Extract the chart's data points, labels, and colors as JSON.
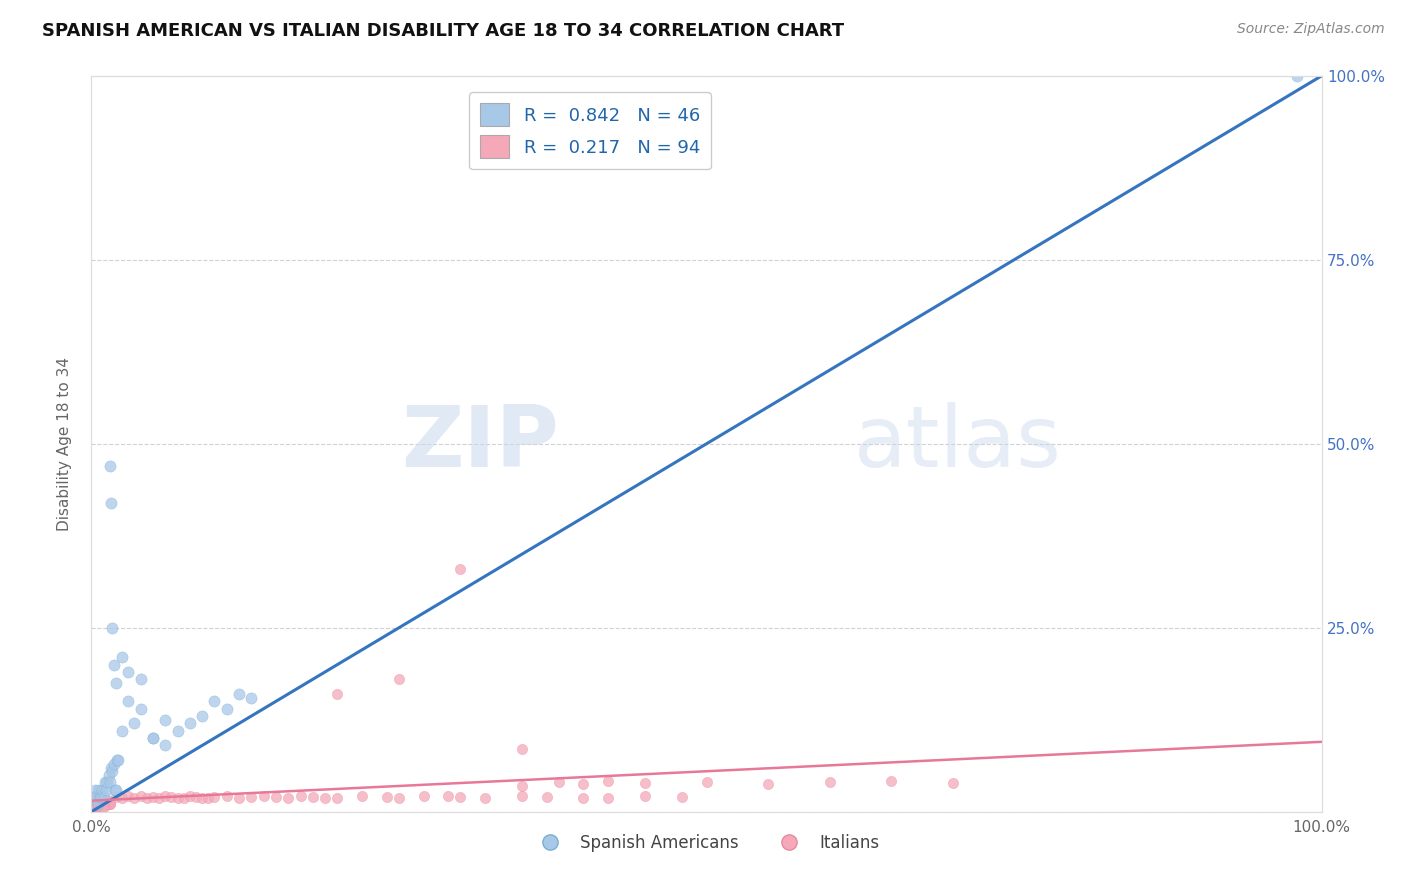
{
  "title": "SPANISH AMERICAN VS ITALIAN DISABILITY AGE 18 TO 34 CORRELATION CHART",
  "source": "Source: ZipAtlas.com",
  "ylabel": "Disability Age 18 to 34",
  "xlabel": "",
  "xlim": [
    0,
    1
  ],
  "ylim": [
    0,
    1
  ],
  "blue_R": 0.842,
  "blue_N": 46,
  "pink_R": 0.217,
  "pink_N": 94,
  "blue_color": "#a8c8e8",
  "blue_edge_color": "#7aaed0",
  "pink_color": "#f4a8b8",
  "pink_edge_color": "#e888a0",
  "blue_line_color": "#3575c0",
  "pink_line_color": "#e87898",
  "legend_label_blue": "Spanish Americans",
  "legend_label_pink": "Italians",
  "watermark_zip": "ZIP",
  "watermark_atlas": "atlas",
  "title_fontsize": 13,
  "background_color": "#ffffff",
  "grid_color": "#cccccc",
  "blue_x": [
    0.001,
    0.002,
    0.003,
    0.004,
    0.005,
    0.006,
    0.007,
    0.008,
    0.009,
    0.01,
    0.011,
    0.012,
    0.013,
    0.014,
    0.015,
    0.016,
    0.017,
    0.018,
    0.019,
    0.02,
    0.021,
    0.022,
    0.025,
    0.03,
    0.035,
    0.04,
    0.05,
    0.06,
    0.07,
    0.08,
    0.09,
    0.1,
    0.11,
    0.12,
    0.13,
    0.015,
    0.016,
    0.017,
    0.018,
    0.02,
    0.025,
    0.03,
    0.04,
    0.05,
    0.06,
    0.98
  ],
  "blue_y": [
    0.02,
    0.02,
    0.03,
    0.02,
    0.01,
    0.03,
    0.02,
    0.02,
    0.03,
    0.02,
    0.04,
    0.03,
    0.04,
    0.05,
    0.04,
    0.06,
    0.055,
    0.065,
    0.03,
    0.03,
    0.07,
    0.07,
    0.11,
    0.15,
    0.12,
    0.14,
    0.1,
    0.09,
    0.11,
    0.12,
    0.13,
    0.15,
    0.14,
    0.16,
    0.155,
    0.47,
    0.42,
    0.25,
    0.2,
    0.175,
    0.21,
    0.19,
    0.18,
    0.1,
    0.125,
    1.0
  ],
  "pink_x": [
    0.001,
    0.002,
    0.003,
    0.004,
    0.005,
    0.006,
    0.007,
    0.008,
    0.009,
    0.01,
    0.011,
    0.012,
    0.013,
    0.014,
    0.015,
    0.001,
    0.002,
    0.003,
    0.004,
    0.005,
    0.006,
    0.007,
    0.008,
    0.009,
    0.01,
    0.011,
    0.012,
    0.013,
    0.014,
    0.015,
    0.001,
    0.002,
    0.003,
    0.004,
    0.005,
    0.006,
    0.007,
    0.008,
    0.009,
    0.01,
    0.02,
    0.025,
    0.03,
    0.035,
    0.04,
    0.045,
    0.05,
    0.055,
    0.06,
    0.065,
    0.07,
    0.075,
    0.08,
    0.085,
    0.09,
    0.095,
    0.1,
    0.11,
    0.12,
    0.13,
    0.14,
    0.15,
    0.16,
    0.17,
    0.18,
    0.19,
    0.2,
    0.22,
    0.24,
    0.25,
    0.27,
    0.29,
    0.3,
    0.32,
    0.35,
    0.37,
    0.4,
    0.42,
    0.45,
    0.48,
    0.35,
    0.38,
    0.4,
    0.42,
    0.45,
    0.5,
    0.55,
    0.6,
    0.65,
    0.7,
    0.2,
    0.25,
    0.3,
    0.35
  ],
  "pink_y": [
    0.01,
    0.008,
    0.012,
    0.009,
    0.007,
    0.011,
    0.008,
    0.01,
    0.012,
    0.009,
    0.013,
    0.01,
    0.011,
    0.012,
    0.01,
    0.015,
    0.012,
    0.014,
    0.016,
    0.013,
    0.01,
    0.008,
    0.011,
    0.013,
    0.015,
    0.012,
    0.009,
    0.011,
    0.014,
    0.01,
    0.005,
    0.006,
    0.007,
    0.005,
    0.006,
    0.007,
    0.006,
    0.005,
    0.007,
    0.006,
    0.02,
    0.018,
    0.022,
    0.019,
    0.021,
    0.018,
    0.02,
    0.019,
    0.022,
    0.02,
    0.018,
    0.019,
    0.021,
    0.02,
    0.018,
    0.019,
    0.02,
    0.021,
    0.019,
    0.02,
    0.022,
    0.02,
    0.019,
    0.021,
    0.02,
    0.018,
    0.019,
    0.021,
    0.02,
    0.019,
    0.022,
    0.021,
    0.02,
    0.019,
    0.021,
    0.02,
    0.018,
    0.019,
    0.021,
    0.02,
    0.035,
    0.04,
    0.038,
    0.042,
    0.039,
    0.041,
    0.038,
    0.04,
    0.042,
    0.039,
    0.16,
    0.18,
    0.33,
    0.085
  ]
}
